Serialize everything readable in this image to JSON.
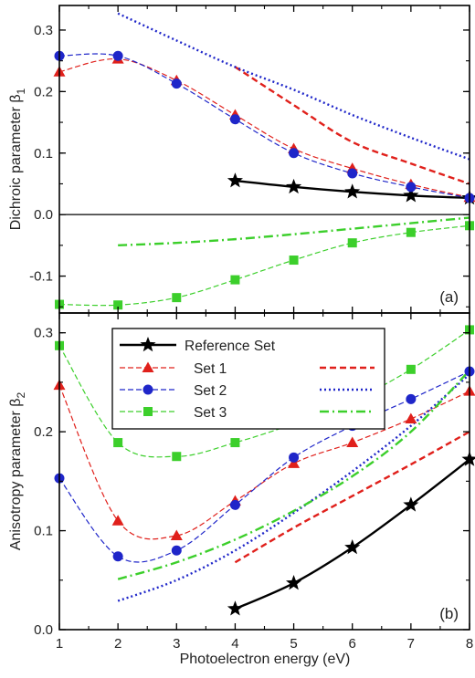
{
  "figure": {
    "xlabel": "Photoelectron energy (eV)",
    "x_ticks": [
      "1",
      "2",
      "3",
      "4",
      "5",
      "6",
      "7",
      "8"
    ]
  },
  "colors": {
    "reference": "#000000",
    "set1": "#e0201b",
    "set2": "#1f26c9",
    "set3": "#3ccf2b"
  },
  "legend": {
    "entries": [
      {
        "label": "Reference Set",
        "series": "reference"
      },
      {
        "label": "Set 1",
        "series": "set1"
      },
      {
        "label": "Set 2",
        "series": "set2"
      },
      {
        "label": "Set 3",
        "series": "set3"
      }
    ]
  },
  "chart_data": [
    {
      "type": "line",
      "panel_label": "(a)",
      "ylabel": "Dichroic parameter β",
      "ylabel_subscript": "1",
      "xlim": [
        1,
        8
      ],
      "ylim": [
        -0.16,
        0.34
      ],
      "y_ticks": [
        -0.1,
        0.0,
        0.1,
        0.2,
        0.3
      ],
      "y_tick_labels": [
        "-0.1",
        "0.0",
        "0.1",
        "0.2",
        "0.3"
      ],
      "zero_line": true,
      "series": [
        {
          "key": "reference",
          "style": "markers+line",
          "marker": "star",
          "x": [
            4,
            5,
            6,
            7,
            8
          ],
          "values": [
            0.055,
            0.045,
            0.037,
            0.031,
            0.027
          ]
        },
        {
          "key": "set1",
          "style": "markers+fit",
          "marker": "triangle",
          "x": [
            1,
            2,
            3,
            4,
            5,
            6,
            7,
            8
          ],
          "values": [
            0.232,
            0.253,
            0.218,
            0.162,
            0.107,
            0.075,
            0.049,
            0.028
          ]
        },
        {
          "key": "set2",
          "style": "markers+fit",
          "marker": "circle",
          "x": [
            1,
            2,
            3,
            4,
            5,
            6,
            7,
            8
          ],
          "values": [
            0.258,
            0.258,
            0.213,
            0.155,
            0.1,
            0.067,
            0.045,
            0.027
          ]
        },
        {
          "key": "set3",
          "style": "markers+fit",
          "marker": "square",
          "x": [
            1,
            2,
            3,
            4,
            5,
            6,
            7,
            8
          ],
          "values": [
            -0.146,
            -0.147,
            -0.135,
            -0.106,
            -0.074,
            -0.046,
            -0.029,
            -0.018
          ]
        },
        {
          "key": "set1",
          "style": "line",
          "dash": "dashed",
          "x": [
            4,
            5,
            6,
            7,
            8
          ],
          "values": [
            0.24,
            0.178,
            0.118,
            0.083,
            0.05
          ]
        },
        {
          "key": "set2",
          "style": "line",
          "dash": "dotted",
          "x": [
            2,
            3,
            4,
            5,
            6,
            7,
            8
          ],
          "values": [
            0.327,
            0.283,
            0.24,
            0.203,
            0.162,
            0.125,
            0.09
          ]
        },
        {
          "key": "set3",
          "style": "line",
          "dash": "dashdot",
          "x": [
            2,
            3,
            4,
            5,
            6,
            7,
            8
          ],
          "values": [
            -0.05,
            -0.046,
            -0.04,
            -0.032,
            -0.023,
            -0.014,
            -0.005
          ]
        }
      ]
    },
    {
      "type": "line",
      "panel_label": "(b)",
      "ylabel": "Anisotropy parameter β",
      "ylabel_subscript": "2",
      "xlim": [
        1,
        8
      ],
      "ylim": [
        0.0,
        0.32
      ],
      "y_ticks": [
        0.0,
        0.1,
        0.2,
        0.3
      ],
      "y_tick_labels": [
        "0.0",
        "0.1",
        "0.2",
        "0.3"
      ],
      "zero_line": false,
      "series": [
        {
          "key": "reference",
          "style": "markers+line",
          "marker": "star",
          "x": [
            4,
            5,
            6,
            7,
            8
          ],
          "values": [
            0.021,
            0.047,
            0.083,
            0.126,
            0.172
          ]
        },
        {
          "key": "set1",
          "style": "markers+fit",
          "marker": "triangle",
          "x": [
            1,
            2,
            3,
            4,
            5,
            6,
            7,
            8
          ],
          "values": [
            0.247,
            0.11,
            0.095,
            0.13,
            0.168,
            0.189,
            0.213,
            0.241
          ]
        },
        {
          "key": "set2",
          "style": "markers+fit",
          "marker": "circle",
          "x": [
            1,
            2,
            3,
            4,
            5,
            6,
            7,
            8
          ],
          "values": [
            0.153,
            0.074,
            0.08,
            0.126,
            0.174,
            0.206,
            0.233,
            0.261
          ]
        },
        {
          "key": "set3",
          "style": "markers+fit",
          "marker": "square",
          "x": [
            1,
            2,
            3,
            4,
            5,
            6,
            7,
            8
          ],
          "values": [
            0.287,
            0.189,
            0.175,
            0.189,
            0.208,
            0.231,
            0.263,
            0.303
          ]
        },
        {
          "key": "set1",
          "style": "line",
          "dash": "dashed",
          "x": [
            4,
            5,
            6,
            7,
            8
          ],
          "values": [
            0.068,
            0.103,
            0.135,
            0.167,
            0.2
          ]
        },
        {
          "key": "set2",
          "style": "line",
          "dash": "dotted",
          "x": [
            2,
            3,
            4,
            5,
            6,
            7,
            8
          ],
          "values": [
            0.029,
            0.05,
            0.08,
            0.118,
            0.16,
            0.206,
            0.258
          ]
        },
        {
          "key": "set3",
          "style": "line",
          "dash": "dashdot",
          "x": [
            2,
            3,
            4,
            5,
            6,
            7,
            8
          ],
          "values": [
            0.051,
            0.068,
            0.091,
            0.12,
            0.155,
            0.2,
            0.262
          ]
        }
      ]
    }
  ]
}
